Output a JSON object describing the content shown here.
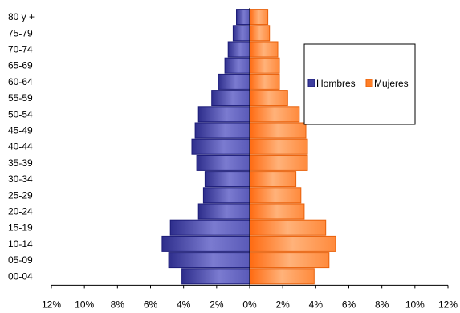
{
  "chart_data": {
    "type": "bar",
    "orientation": "horizontal",
    "layout": "population-pyramid",
    "categories": [
      "80 y +",
      "75-79",
      "70-74",
      "65-69",
      "60-64",
      "55-59",
      "50-54",
      "45-49",
      "40-44",
      "35-39",
      "30-34",
      "25-29",
      "20-24",
      "15-19",
      "10-14",
      "05-09",
      "00-04"
    ],
    "series": [
      {
        "name": "Hombres",
        "side": "left",
        "color": "#3f3f9f",
        "values": [
          0.8,
          1.0,
          1.3,
          1.5,
          1.9,
          2.3,
          3.1,
          3.3,
          3.5,
          3.2,
          2.7,
          2.8,
          3.1,
          4.8,
          5.3,
          4.9,
          4.1
        ]
      },
      {
        "name": "Mujeres",
        "side": "right",
        "color": "#ff7f27",
        "values": [
          1.1,
          1.2,
          1.7,
          1.8,
          1.8,
          2.3,
          3.0,
          3.4,
          3.5,
          3.5,
          2.8,
          3.1,
          3.3,
          4.6,
          5.2,
          4.8,
          3.9
        ]
      }
    ],
    "xlim": [
      -12,
      12
    ],
    "xticks": [
      "12%",
      "10%",
      "8%",
      "6%",
      "4%",
      "2%",
      "0%",
      "2%",
      "4%",
      "6%",
      "8%",
      "10%",
      "12%"
    ],
    "xlabel": "",
    "ylabel": "",
    "title": "",
    "grid": false,
    "legend_position": "right"
  }
}
